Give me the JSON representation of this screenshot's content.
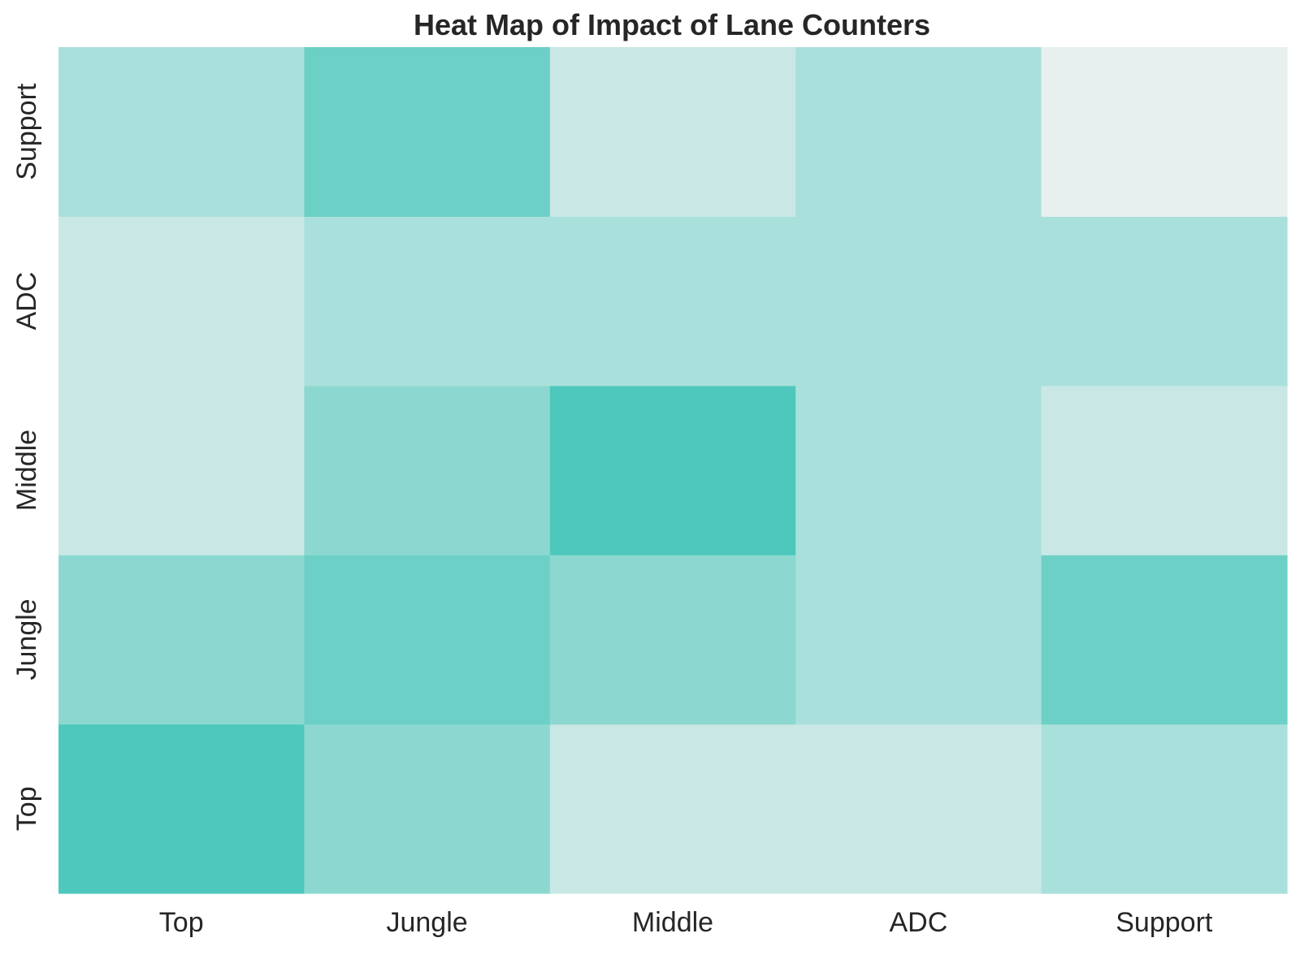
{
  "chart_data": {
    "type": "heatmap",
    "title": "Heat Map of Impact of Lane Counters",
    "xlabel": "",
    "ylabel": "",
    "x_categories": [
      "Top",
      "Jungle",
      "Middle",
      "ADC",
      "Support"
    ],
    "y_categories_bottom_to_top": [
      "Top",
      "Jungle",
      "Middle",
      "ADC",
      "Support"
    ],
    "values": [
      [
        5,
        3,
        1,
        1,
        2
      ],
      [
        3,
        4,
        3,
        2,
        4
      ],
      [
        1,
        3,
        5,
        2,
        1
      ],
      [
        1,
        2,
        2,
        2,
        2
      ],
      [
        2,
        4,
        1,
        2,
        0
      ]
    ],
    "value_range": [
      0,
      5
    ],
    "colormap": {
      "low": "#e8f0ef",
      "high": "#4ec8bc"
    },
    "colorbar": false,
    "grid": false
  }
}
